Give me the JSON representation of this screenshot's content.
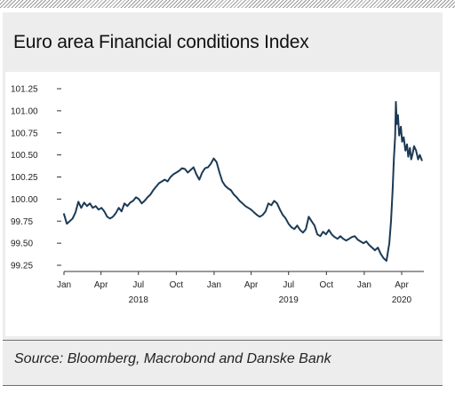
{
  "header": {
    "title": "Euro area Financial conditions Index"
  },
  "footer": {
    "source": "Source: Bloomberg, Macrobond and Danske Bank"
  },
  "chart_data": {
    "type": "line",
    "title": "Euro area Financial conditions Index",
    "xlabel": "",
    "ylabel": "",
    "ylim": [
      99.25,
      101.25
    ],
    "xlim": [
      "2018-01-01",
      "2020-05-25"
    ],
    "y_ticks": [
      "101.25",
      "101.00",
      "100.75",
      "100.50",
      "100.25",
      "100.00",
      "99.75",
      "99.50",
      "99.25"
    ],
    "x_ticks": [
      {
        "label": "Jan",
        "date": "2018-01-01"
      },
      {
        "label": "Apr",
        "date": "2018-04-01"
      },
      {
        "label": "Jul",
        "date": "2018-07-01"
      },
      {
        "label": "Oct",
        "date": "2018-10-01"
      },
      {
        "label": "Jan",
        "date": "2019-01-01"
      },
      {
        "label": "Apr",
        "date": "2019-04-01"
      },
      {
        "label": "Jul",
        "date": "2019-07-01"
      },
      {
        "label": "Oct",
        "date": "2019-10-01"
      },
      {
        "label": "Jan",
        "date": "2020-01-01"
      },
      {
        "label": "Apr",
        "date": "2020-04-01"
      }
    ],
    "year_labels": [
      {
        "label": "2018",
        "date": "2018-07-01"
      },
      {
        "label": "2019",
        "date": "2019-07-01"
      },
      {
        "label": "2020",
        "date": "2020-04-01"
      }
    ],
    "grid": false,
    "line_color": "#1b3a55",
    "series": [
      {
        "points": [
          [
            "2018-01-01",
            99.83
          ],
          [
            "2018-01-08",
            99.72
          ],
          [
            "2018-01-15",
            99.75
          ],
          [
            "2018-01-22",
            99.78
          ],
          [
            "2018-01-29",
            99.85
          ],
          [
            "2018-02-05",
            99.97
          ],
          [
            "2018-02-12",
            99.9
          ],
          [
            "2018-02-19",
            99.96
          ],
          [
            "2018-02-26",
            99.92
          ],
          [
            "2018-03-05",
            99.95
          ],
          [
            "2018-03-12",
            99.9
          ],
          [
            "2018-03-19",
            99.92
          ],
          [
            "2018-03-26",
            99.88
          ],
          [
            "2018-04-02",
            99.9
          ],
          [
            "2018-04-09",
            99.86
          ],
          [
            "2018-04-16",
            99.8
          ],
          [
            "2018-04-23",
            99.78
          ],
          [
            "2018-04-30",
            99.8
          ],
          [
            "2018-05-07",
            99.84
          ],
          [
            "2018-05-14",
            99.9
          ],
          [
            "2018-05-21",
            99.86
          ],
          [
            "2018-05-28",
            99.95
          ],
          [
            "2018-06-04",
            99.92
          ],
          [
            "2018-06-11",
            99.96
          ],
          [
            "2018-06-18",
            99.98
          ],
          [
            "2018-06-25",
            100.02
          ],
          [
            "2018-07-02",
            100.0
          ],
          [
            "2018-07-09",
            99.95
          ],
          [
            "2018-07-16",
            99.98
          ],
          [
            "2018-07-23",
            100.02
          ],
          [
            "2018-07-30",
            100.05
          ],
          [
            "2018-08-06",
            100.1
          ],
          [
            "2018-08-13",
            100.14
          ],
          [
            "2018-08-20",
            100.18
          ],
          [
            "2018-08-27",
            100.2
          ],
          [
            "2018-09-03",
            100.22
          ],
          [
            "2018-09-10",
            100.2
          ],
          [
            "2018-09-17",
            100.25
          ],
          [
            "2018-09-24",
            100.28
          ],
          [
            "2018-10-01",
            100.3
          ],
          [
            "2018-10-08",
            100.32
          ],
          [
            "2018-10-15",
            100.35
          ],
          [
            "2018-10-22",
            100.34
          ],
          [
            "2018-10-29",
            100.3
          ],
          [
            "2018-11-05",
            100.33
          ],
          [
            "2018-11-12",
            100.36
          ],
          [
            "2018-11-19",
            100.28
          ],
          [
            "2018-11-26",
            100.22
          ],
          [
            "2018-12-03",
            100.3
          ],
          [
            "2018-12-10",
            100.35
          ],
          [
            "2018-12-17",
            100.36
          ],
          [
            "2018-12-24",
            100.4
          ],
          [
            "2018-12-31",
            100.46
          ],
          [
            "2019-01-07",
            100.42
          ],
          [
            "2019-01-14",
            100.3
          ],
          [
            "2019-01-21",
            100.2
          ],
          [
            "2019-01-28",
            100.15
          ],
          [
            "2019-02-04",
            100.12
          ],
          [
            "2019-02-11",
            100.1
          ],
          [
            "2019-02-18",
            100.05
          ],
          [
            "2019-02-25",
            100.02
          ],
          [
            "2019-03-04",
            99.98
          ],
          [
            "2019-03-11",
            99.95
          ],
          [
            "2019-03-18",
            99.92
          ],
          [
            "2019-03-25",
            99.9
          ],
          [
            "2019-04-01",
            99.88
          ],
          [
            "2019-04-08",
            99.85
          ],
          [
            "2019-04-15",
            99.82
          ],
          [
            "2019-04-22",
            99.8
          ],
          [
            "2019-04-29",
            99.82
          ],
          [
            "2019-05-06",
            99.86
          ],
          [
            "2019-05-13",
            99.95
          ],
          [
            "2019-05-20",
            99.93
          ],
          [
            "2019-05-27",
            99.98
          ],
          [
            "2019-06-03",
            99.95
          ],
          [
            "2019-06-10",
            99.88
          ],
          [
            "2019-06-17",
            99.82
          ],
          [
            "2019-06-24",
            99.78
          ],
          [
            "2019-07-01",
            99.72
          ],
          [
            "2019-07-08",
            99.68
          ],
          [
            "2019-07-15",
            99.66
          ],
          [
            "2019-07-22",
            99.7
          ],
          [
            "2019-07-29",
            99.65
          ],
          [
            "2019-08-05",
            99.62
          ],
          [
            "2019-08-12",
            99.66
          ],
          [
            "2019-08-19",
            99.8
          ],
          [
            "2019-08-26",
            99.75
          ],
          [
            "2019-09-02",
            99.7
          ],
          [
            "2019-09-09",
            99.6
          ],
          [
            "2019-09-16",
            99.58
          ],
          [
            "2019-09-23",
            99.63
          ],
          [
            "2019-09-30",
            99.6
          ],
          [
            "2019-10-07",
            99.65
          ],
          [
            "2019-10-14",
            99.6
          ],
          [
            "2019-10-21",
            99.57
          ],
          [
            "2019-10-28",
            99.55
          ],
          [
            "2019-11-04",
            99.58
          ],
          [
            "2019-11-11",
            99.55
          ],
          [
            "2019-11-18",
            99.53
          ],
          [
            "2019-11-25",
            99.55
          ],
          [
            "2019-12-02",
            99.57
          ],
          [
            "2019-12-09",
            99.58
          ],
          [
            "2019-12-16",
            99.54
          ],
          [
            "2019-12-23",
            99.52
          ],
          [
            "2019-12-30",
            99.5
          ],
          [
            "2020-01-06",
            99.52
          ],
          [
            "2020-01-13",
            99.48
          ],
          [
            "2020-01-20",
            99.45
          ],
          [
            "2020-01-27",
            99.42
          ],
          [
            "2020-02-03",
            99.45
          ],
          [
            "2020-02-10",
            99.38
          ],
          [
            "2020-02-17",
            99.33
          ],
          [
            "2020-02-24",
            99.3
          ],
          [
            "2020-03-02",
            99.5
          ],
          [
            "2020-03-06",
            99.75
          ],
          [
            "2020-03-10",
            100.1
          ],
          [
            "2020-03-13",
            100.45
          ],
          [
            "2020-03-16",
            100.7
          ],
          [
            "2020-03-18",
            101.1
          ],
          [
            "2020-03-20",
            100.85
          ],
          [
            "2020-03-23",
            100.95
          ],
          [
            "2020-03-26",
            100.72
          ],
          [
            "2020-03-30",
            100.82
          ],
          [
            "2020-04-02",
            100.65
          ],
          [
            "2020-04-06",
            100.7
          ],
          [
            "2020-04-10",
            100.55
          ],
          [
            "2020-04-14",
            100.62
          ],
          [
            "2020-04-17",
            100.48
          ],
          [
            "2020-04-21",
            100.58
          ],
          [
            "2020-04-24",
            100.45
          ],
          [
            "2020-04-28",
            100.52
          ],
          [
            "2020-05-01",
            100.6
          ],
          [
            "2020-05-06",
            100.55
          ],
          [
            "2020-05-11",
            100.45
          ],
          [
            "2020-05-15",
            100.5
          ],
          [
            "2020-05-20",
            100.44
          ]
        ]
      }
    ]
  }
}
